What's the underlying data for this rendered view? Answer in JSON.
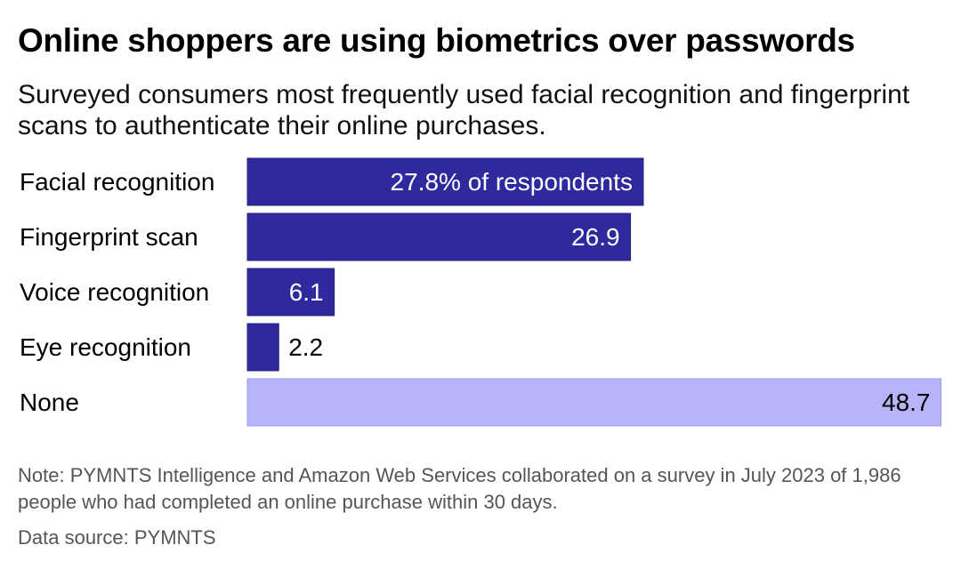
{
  "title": "Online shoppers are using biometrics over passwords",
  "subtitle": "Surveyed consumers most frequently used facial recognition and fingerprint scans to authenticate their online purchases.",
  "note": "Note: PYMNTS Intelligence and Amazon Web Services collaborated on a survey in July 2023 of 1,986 people who had completed an online purchase within 30 days.",
  "source": "Data source: PYMNTS",
  "colors": {
    "primary_bar": "#2e2a9e",
    "highlight_bar": "#b8b4fb",
    "inside_label": "#ffffff",
    "outside_label": "#000000"
  },
  "chart_data": {
    "type": "bar",
    "orientation": "horizontal",
    "categories": [
      "Facial recognition",
      "Fingerprint scan",
      "Voice recognition",
      "Eye recognition",
      "None"
    ],
    "values": [
      27.8,
      26.9,
      6.1,
      2.2,
      48.7
    ],
    "value_labels": [
      "27.8% of respondents",
      "26.9",
      "6.1",
      "2.2",
      "48.7"
    ],
    "unit": "% of respondents",
    "xlim": [
      0,
      48.7
    ],
    "grid": false,
    "legend": "none"
  }
}
